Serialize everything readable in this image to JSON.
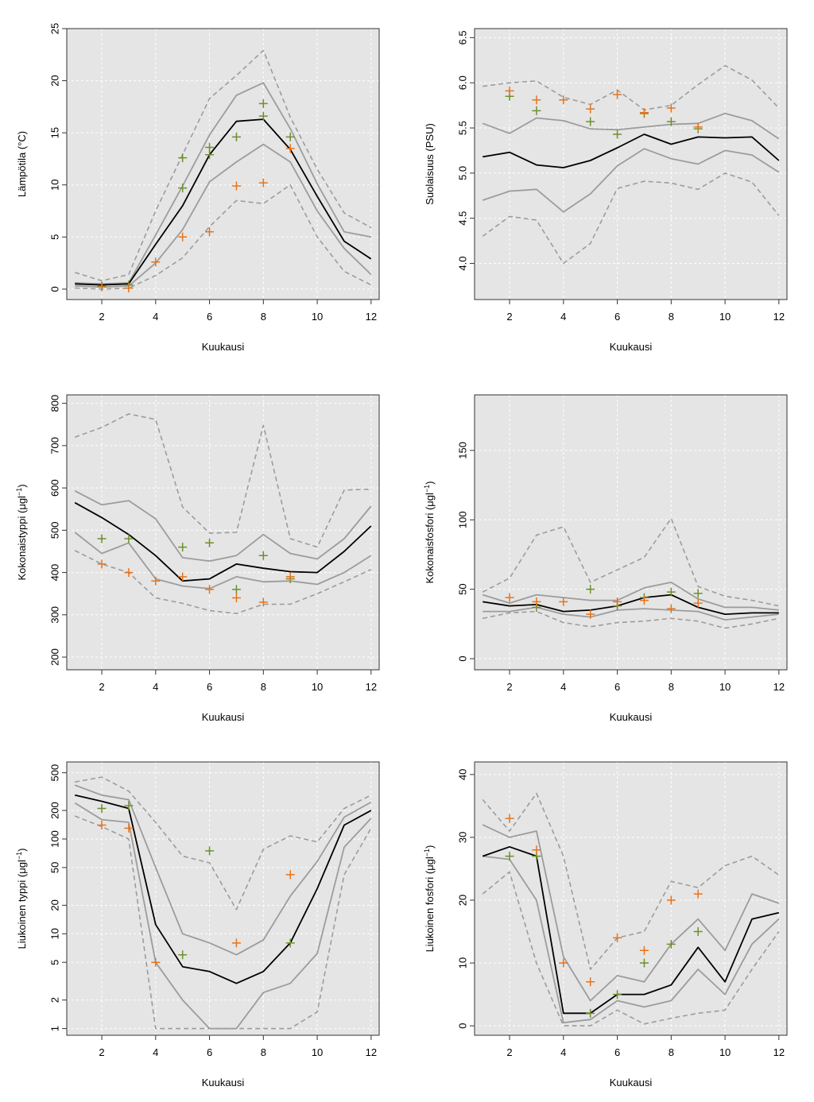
{
  "colors": {
    "panel_bg": "#e5e5e5",
    "grid": "#ffffff",
    "median": "#000000",
    "quartile": "#9c9c9c",
    "extreme": "#9c9c9c",
    "obs_orange": "#e8731a",
    "obs_green": "#6e8f2c",
    "axis": "#333333"
  },
  "chart_data": [
    {
      "id": "temperature",
      "type": "line",
      "ylabel": "Lämpötila (°C)",
      "xlabel": "Kuukausi",
      "scale": "linear",
      "ylim": [
        -1,
        25
      ],
      "yticks": [
        0,
        5,
        10,
        15,
        20,
        25
      ],
      "ytick_labels": [
        "0",
        "5",
        "10",
        "15",
        "20",
        "25"
      ],
      "xticks": [
        2,
        4,
        6,
        8,
        10,
        12
      ],
      "xlim": [
        0.7,
        12.3
      ],
      "x": [
        1,
        2,
        3,
        4,
        5,
        6,
        7,
        8,
        9,
        10,
        11,
        12
      ],
      "median": [
        0.5,
        0.4,
        0.5,
        4.3,
        8.0,
        12.9,
        16.1,
        16.3,
        13.4,
        8.9,
        4.6,
        2.9
      ],
      "q_low": [
        0.3,
        0.2,
        0.3,
        2.5,
        5.7,
        10.3,
        12.2,
        13.9,
        12.2,
        7.5,
        3.9,
        1.4
      ],
      "q_high": [
        0.6,
        0.5,
        0.6,
        5.2,
        9.9,
        14.8,
        18.6,
        19.8,
        15.4,
        10.1,
        5.5,
        5.0
      ],
      "ext_low": [
        0.1,
        0.0,
        0.1,
        1.3,
        3.0,
        6.0,
        8.5,
        8.2,
        10.0,
        5.0,
        1.7,
        0.4
      ],
      "ext_high": [
        1.6,
        0.8,
        1.4,
        7.5,
        12.9,
        18.3,
        20.5,
        22.9,
        16.5,
        11.5,
        7.3,
        5.9
      ],
      "obs_orange": [
        {
          "x": 2,
          "y": 0.2
        },
        {
          "x": 3,
          "y": 0.1
        },
        {
          "x": 4,
          "y": 2.6
        },
        {
          "x": 5,
          "y": 5.0
        },
        {
          "x": 6,
          "y": 5.5
        },
        {
          "x": 7,
          "y": 9.9
        },
        {
          "x": 8,
          "y": 10.2
        },
        {
          "x": 9,
          "y": 13.5
        }
      ],
      "obs_green": [
        {
          "x": 2,
          "y": 0.3
        },
        {
          "x": 3,
          "y": 0.4
        },
        {
          "x": 5,
          "y": 9.7
        },
        {
          "x": 5,
          "y": 12.6
        },
        {
          "x": 6,
          "y": 12.9
        },
        {
          "x": 6,
          "y": 13.6
        },
        {
          "x": 7,
          "y": 14.6
        },
        {
          "x": 8,
          "y": 16.6
        },
        {
          "x": 8,
          "y": 17.8
        },
        {
          "x": 9,
          "y": 14.6
        }
      ]
    },
    {
      "id": "salinity",
      "type": "line",
      "ylabel": "Suolaisuus (PSU)",
      "xlabel": "Kuukausi",
      "scale": "linear",
      "ylim": [
        3.6,
        6.6
      ],
      "yticks": [
        4.0,
        4.5,
        5.0,
        5.5,
        6.0,
        6.5
      ],
      "ytick_labels": [
        "4.0",
        "4.5",
        "5.0",
        "5.5",
        "6.0",
        "6.5"
      ],
      "xticks": [
        2,
        4,
        6,
        8,
        10,
        12
      ],
      "xlim": [
        0.7,
        12.3
      ],
      "x": [
        1,
        2,
        3,
        4,
        5,
        6,
        7,
        8,
        9,
        10,
        11,
        12
      ],
      "median": [
        5.18,
        5.23,
        5.09,
        5.06,
        5.14,
        5.28,
        5.43,
        5.32,
        5.4,
        5.39,
        5.4,
        5.14
      ],
      "q_low": [
        4.7,
        4.8,
        4.82,
        4.57,
        4.77,
        5.08,
        5.27,
        5.16,
        5.1,
        5.25,
        5.2,
        5.01
      ],
      "q_high": [
        5.55,
        5.44,
        5.61,
        5.58,
        5.49,
        5.48,
        5.51,
        5.54,
        5.55,
        5.66,
        5.58,
        5.38
      ],
      "ext_low": [
        4.3,
        4.52,
        4.48,
        4.0,
        4.22,
        4.83,
        4.91,
        4.89,
        4.82,
        5.0,
        4.9,
        4.53
      ],
      "ext_high": [
        5.96,
        6.0,
        6.02,
        5.84,
        5.76,
        5.92,
        5.7,
        5.75,
        5.98,
        6.19,
        6.03,
        5.72
      ],
      "obs_orange": [
        {
          "x": 2,
          "y": 5.91
        },
        {
          "x": 3,
          "y": 5.81
        },
        {
          "x": 4,
          "y": 5.81
        },
        {
          "x": 5,
          "y": 5.71
        },
        {
          "x": 6,
          "y": 5.87
        },
        {
          "x": 7,
          "y": 5.67
        },
        {
          "x": 8,
          "y": 5.72
        },
        {
          "x": 9,
          "y": 5.51
        }
      ],
      "obs_green": [
        {
          "x": 2,
          "y": 5.85
        },
        {
          "x": 3,
          "y": 5.69
        },
        {
          "x": 5,
          "y": 5.57
        },
        {
          "x": 6,
          "y": 5.43
        },
        {
          "x": 7,
          "y": 5.66
        },
        {
          "x": 8,
          "y": 5.57
        },
        {
          "x": 9,
          "y": 5.49
        }
      ]
    },
    {
      "id": "total-nitrogen",
      "type": "line",
      "ylabel": "Kokonaistyppi (μgl",
      "ylabel_sup": "−1",
      "ylabel_end": ")",
      "xlabel": "Kuukausi",
      "scale": "linear",
      "ylim": [
        170,
        820
      ],
      "yticks": [
        200,
        300,
        400,
        500,
        600,
        700,
        800
      ],
      "ytick_labels": [
        "200",
        "300",
        "400",
        "500",
        "600",
        "700",
        "800"
      ],
      "xticks": [
        2,
        4,
        6,
        8,
        10,
        12
      ],
      "xlim": [
        0.7,
        12.3
      ],
      "x": [
        1,
        2,
        3,
        4,
        5,
        6,
        7,
        8,
        9,
        10,
        11,
        12
      ],
      "median": [
        565,
        530,
        490,
        440,
        380,
        385,
        420,
        410,
        402,
        400,
        450,
        510
      ],
      "q_low": [
        495,
        445,
        470,
        385,
        368,
        362,
        390,
        378,
        380,
        372,
        400,
        440
      ],
      "q_high": [
        593,
        560,
        570,
        527,
        435,
        427,
        440,
        490,
        445,
        432,
        480,
        557
      ],
      "ext_low": [
        452,
        420,
        400,
        340,
        327,
        310,
        303,
        325,
        325,
        350,
        378,
        407
      ],
      "ext_high": [
        720,
        743,
        775,
        762,
        555,
        493,
        495,
        748,
        480,
        460,
        595,
        597
      ],
      "obs_orange": [
        {
          "x": 2,
          "y": 420
        },
        {
          "x": 3,
          "y": 400
        },
        {
          "x": 4,
          "y": 380
        },
        {
          "x": 5,
          "y": 390
        },
        {
          "x": 6,
          "y": 360
        },
        {
          "x": 7,
          "y": 340
        },
        {
          "x": 8,
          "y": 330
        },
        {
          "x": 9,
          "y": 390
        }
      ],
      "obs_green": [
        {
          "x": 2,
          "y": 480
        },
        {
          "x": 3,
          "y": 480
        },
        {
          "x": 5,
          "y": 460
        },
        {
          "x": 6,
          "y": 470
        },
        {
          "x": 7,
          "y": 360
        },
        {
          "x": 8,
          "y": 440
        },
        {
          "x": 9,
          "y": 385
        }
      ]
    },
    {
      "id": "total-phosphorus",
      "type": "line",
      "ylabel": "Kokonaisfosfori (μgl",
      "ylabel_sup": "−1",
      "ylabel_end": ")",
      "xlabel": "Kuukausi",
      "scale": "linear",
      "ylim": [
        -8,
        190
      ],
      "yticks": [
        0,
        50,
        100,
        150
      ],
      "ytick_labels": [
        "0",
        "50",
        "100",
        "150"
      ],
      "xticks": [
        2,
        4,
        6,
        8,
        10,
        12
      ],
      "xlim": [
        0.7,
        12.3
      ],
      "x": [
        1,
        2,
        3,
        4,
        5,
        6,
        7,
        8,
        9,
        10,
        11,
        12
      ],
      "median": [
        41,
        38,
        39,
        34,
        35,
        38,
        44,
        46,
        37,
        32,
        33,
        33
      ],
      "q_low": [
        34,
        34,
        37,
        32,
        30,
        35,
        36,
        35,
        34,
        28,
        30,
        32
      ],
      "q_high": [
        46,
        40,
        46,
        44,
        42,
        42,
        51,
        55,
        43,
        37,
        37,
        35
      ],
      "ext_low": [
        29,
        33,
        34,
        26,
        23,
        26,
        27,
        29,
        27,
        22,
        25,
        29
      ],
      "ext_high": [
        48,
        58,
        89,
        95,
        55,
        64,
        73,
        101,
        52,
        45,
        42,
        38
      ],
      "obs_orange": [
        {
          "x": 2,
          "y": 44
        },
        {
          "x": 3,
          "y": 41
        },
        {
          "x": 4,
          "y": 41
        },
        {
          "x": 5,
          "y": 32
        },
        {
          "x": 6,
          "y": 41
        },
        {
          "x": 7,
          "y": 42
        },
        {
          "x": 8,
          "y": 36
        },
        {
          "x": 9,
          "y": 40
        }
      ],
      "obs_green": [
        {
          "x": 3,
          "y": 37
        },
        {
          "x": 5,
          "y": 50
        },
        {
          "x": 6,
          "y": 38
        },
        {
          "x": 7,
          "y": 44
        },
        {
          "x": 8,
          "y": 48
        },
        {
          "x": 9,
          "y": 47
        }
      ]
    },
    {
      "id": "dissolved-nitrogen",
      "type": "line",
      "ylabel": "Liukoinen typpi (μgl",
      "ylabel_sup": "−1",
      "ylabel_end": ")",
      "xlabel": "Kuukausi",
      "scale": "log",
      "ylim": [
        0.85,
        650
      ],
      "yticks": [
        1,
        2,
        5,
        10,
        20,
        50,
        100,
        200,
        500
      ],
      "ytick_labels": [
        "1",
        "2",
        "5",
        "10",
        "20",
        "50",
        "100",
        "200",
        "500"
      ],
      "xticks": [
        2,
        4,
        6,
        8,
        10,
        12
      ],
      "xlim": [
        0.7,
        12.3
      ],
      "x": [
        1,
        2,
        3,
        4,
        5,
        6,
        7,
        8,
        9,
        10,
        11,
        12
      ],
      "median": [
        290,
        250,
        210,
        12.5,
        4.5,
        4.0,
        3.0,
        4.0,
        8.0,
        30,
        140,
        200
      ],
      "q_low": [
        240,
        160,
        150,
        5.0,
        2.0,
        1.0,
        1.0,
        2.4,
        3.0,
        6.2,
        82,
        165
      ],
      "q_high": [
        370,
        290,
        260,
        50,
        10,
        8.0,
        6.0,
        8.6,
        25,
        58,
        170,
        245
      ],
      "ext_low": [
        175,
        135,
        100,
        1.0,
        1.0,
        1.0,
        1.0,
        1.0,
        1.0,
        1.5,
        42,
        130
      ],
      "ext_high": [
        400,
        450,
        320,
        150,
        66,
        56,
        18,
        78,
        108,
        93,
        210,
        290
      ],
      "obs_orange": [
        {
          "x": 2,
          "y": 140
        },
        {
          "x": 3,
          "y": 130
        },
        {
          "x": 4,
          "y": 5
        },
        {
          "x": 7,
          "y": 8
        },
        {
          "x": 9,
          "y": 42
        }
      ],
      "obs_green": [
        {
          "x": 2,
          "y": 210
        },
        {
          "x": 3,
          "y": 225
        },
        {
          "x": 5,
          "y": 6
        },
        {
          "x": 6,
          "y": 75
        },
        {
          "x": 9,
          "y": 8
        }
      ]
    },
    {
      "id": "dissolved-phosphorus",
      "type": "line",
      "ylabel": "Liukoinen fosfori (μgl",
      "ylabel_sup": "−1",
      "ylabel_end": ")",
      "xlabel": "Kuukausi",
      "scale": "linear",
      "ylim": [
        -1.5,
        42
      ],
      "yticks": [
        0,
        10,
        20,
        30,
        40
      ],
      "ytick_labels": [
        "0",
        "10",
        "20",
        "30",
        "40"
      ],
      "xticks": [
        2,
        4,
        6,
        8,
        10,
        12
      ],
      "xlim": [
        0.7,
        12.3
      ],
      "x": [
        1,
        2,
        3,
        4,
        5,
        6,
        7,
        8,
        9,
        10,
        11,
        12
      ],
      "median": [
        27,
        28.5,
        27,
        2,
        2,
        5,
        5,
        6.5,
        12.5,
        7,
        17,
        18
      ],
      "q_low": [
        27,
        26.5,
        20,
        0.5,
        1,
        4,
        3,
        4,
        9,
        5,
        13,
        17
      ],
      "q_high": [
        32,
        30,
        31,
        11,
        4,
        8,
        7,
        13,
        17,
        12,
        21,
        19.5
      ],
      "ext_low": [
        21,
        24.5,
        10,
        0,
        0,
        2.5,
        0.3,
        1.2,
        2,
        2.5,
        9,
        15
      ],
      "ext_high": [
        36,
        31,
        37,
        27,
        9,
        14,
        15,
        23,
        22,
        25.5,
        27,
        24
      ],
      "obs_orange": [
        {
          "x": 2,
          "y": 33
        },
        {
          "x": 3,
          "y": 28
        },
        {
          "x": 4,
          "y": 10
        },
        {
          "x": 5,
          "y": 7
        },
        {
          "x": 6,
          "y": 14
        },
        {
          "x": 7,
          "y": 12
        },
        {
          "x": 8,
          "y": 20
        },
        {
          "x": 9,
          "y": 21
        }
      ],
      "obs_green": [
        {
          "x": 2,
          "y": 27
        },
        {
          "x": 3,
          "y": 27
        },
        {
          "x": 5,
          "y": 2
        },
        {
          "x": 6,
          "y": 5
        },
        {
          "x": 7,
          "y": 10
        },
        {
          "x": 8,
          "y": 13
        },
        {
          "x": 9,
          "y": 15
        }
      ]
    }
  ]
}
